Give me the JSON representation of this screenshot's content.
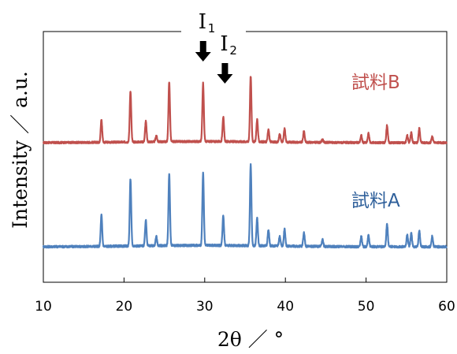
{
  "chart_data": {
    "type": "line",
    "xlabel": "2θ ／ °",
    "ylabel": "Intensity ／ a.u.",
    "xlim": [
      10,
      60
    ],
    "xticks": [
      10,
      20,
      30,
      40,
      50,
      60
    ],
    "grid": false,
    "legend": "inline labels at right of each series",
    "annotations": [
      {
        "name": "I1",
        "label": "I",
        "sub": "1",
        "x": 29.8
      },
      {
        "name": "I2",
        "label": "I",
        "sub": "2",
        "x": 32.6
      }
    ],
    "series": [
      {
        "name": "試料B",
        "color": "#c0504d",
        "peaks": [
          {
            "x": 17.2,
            "h": 0.22
          },
          {
            "x": 20.8,
            "h": 0.5
          },
          {
            "x": 22.7,
            "h": 0.2
          },
          {
            "x": 24.0,
            "h": 0.06
          },
          {
            "x": 25.6,
            "h": 0.58
          },
          {
            "x": 29.8,
            "h": 0.57
          },
          {
            "x": 32.3,
            "h": 0.24
          },
          {
            "x": 35.7,
            "h": 0.64
          },
          {
            "x": 36.5,
            "h": 0.22
          },
          {
            "x": 37.9,
            "h": 0.12
          },
          {
            "x": 39.3,
            "h": 0.08
          },
          {
            "x": 39.9,
            "h": 0.13
          },
          {
            "x": 42.3,
            "h": 0.11
          },
          {
            "x": 44.6,
            "h": 0.03
          },
          {
            "x": 49.4,
            "h": 0.07
          },
          {
            "x": 50.3,
            "h": 0.09
          },
          {
            "x": 52.6,
            "h": 0.17
          },
          {
            "x": 55.1,
            "h": 0.07
          },
          {
            "x": 55.6,
            "h": 0.1
          },
          {
            "x": 56.6,
            "h": 0.14
          },
          {
            "x": 58.2,
            "h": 0.06
          }
        ]
      },
      {
        "name": "試料A",
        "color": "#4f81bd",
        "peaks": [
          {
            "x": 17.2,
            "h": 0.27
          },
          {
            "x": 20.8,
            "h": 0.58
          },
          {
            "x": 22.7,
            "h": 0.22
          },
          {
            "x": 24.0,
            "h": 0.08
          },
          {
            "x": 25.6,
            "h": 0.62
          },
          {
            "x": 29.8,
            "h": 0.62
          },
          {
            "x": 32.3,
            "h": 0.26
          },
          {
            "x": 35.7,
            "h": 0.7
          },
          {
            "x": 36.5,
            "h": 0.24
          },
          {
            "x": 37.9,
            "h": 0.14
          },
          {
            "x": 39.3,
            "h": 0.09
          },
          {
            "x": 39.9,
            "h": 0.15
          },
          {
            "x": 42.3,
            "h": 0.12
          },
          {
            "x": 44.6,
            "h": 0.06
          },
          {
            "x": 49.4,
            "h": 0.09
          },
          {
            "x": 50.3,
            "h": 0.1
          },
          {
            "x": 52.6,
            "h": 0.2
          },
          {
            "x": 55.1,
            "h": 0.1
          },
          {
            "x": 55.6,
            "h": 0.12
          },
          {
            "x": 56.6,
            "h": 0.14
          },
          {
            "x": 58.2,
            "h": 0.09
          }
        ]
      }
    ]
  }
}
